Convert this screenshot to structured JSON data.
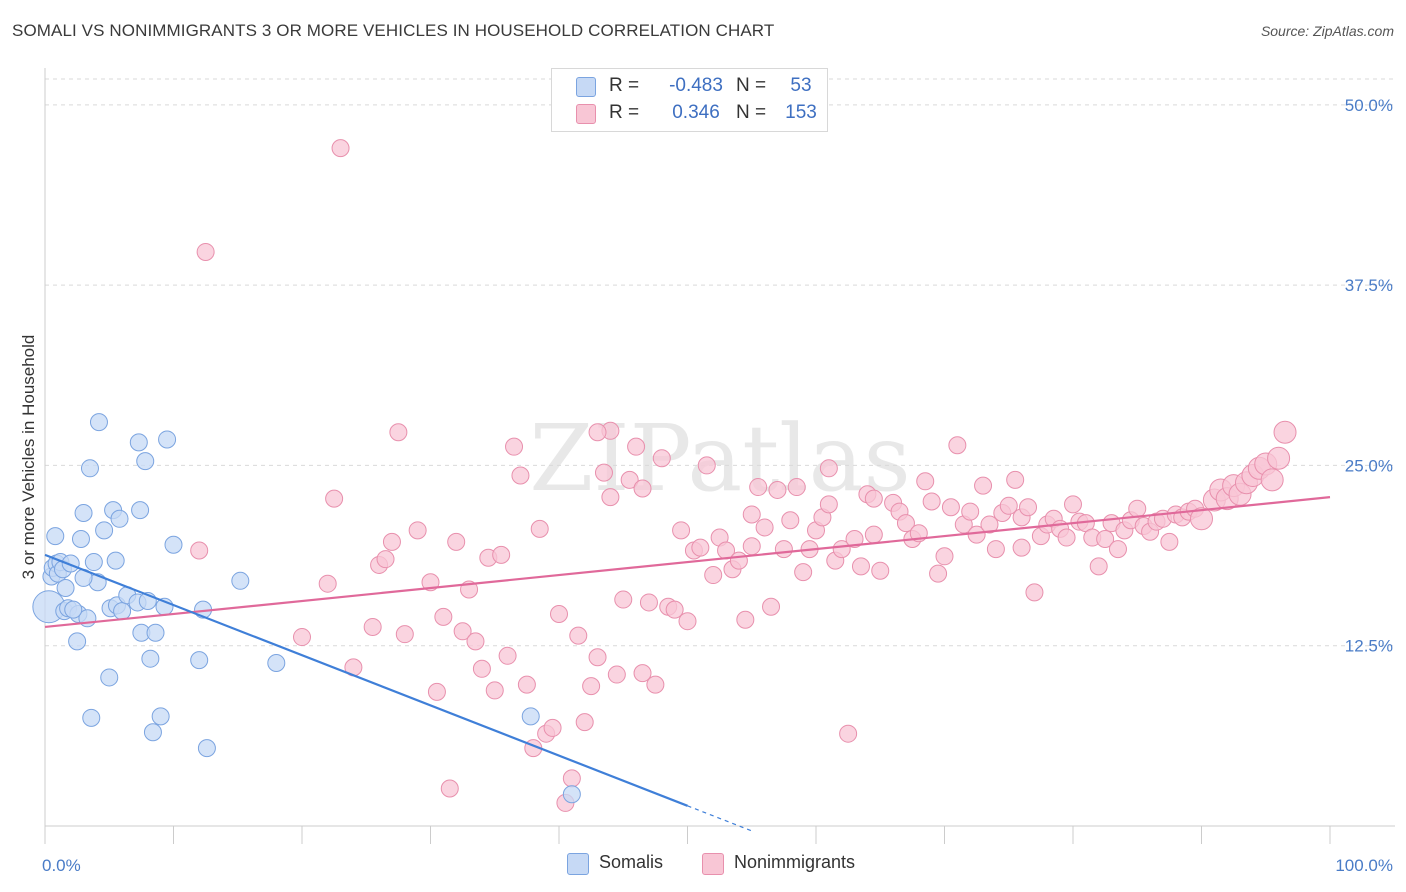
{
  "title": "SOMALI VS NONIMMIGRANTS 3 OR MORE VEHICLES IN HOUSEHOLD CORRELATION CHART",
  "source": "Source: ZipAtlas.com",
  "watermark": "ZIPatlas",
  "colors": {
    "somalis_fill": "#c6d9f5",
    "somalis_stroke": "#7ba4e0",
    "somalis_line": "#3f7fd8",
    "nonimm_fill": "#f8c6d5",
    "nonimm_stroke": "#e890ad",
    "nonimm_line": "#e0699a",
    "tick_label": "#4a7cc7",
    "grid": "#d9d9d9"
  },
  "legend": {
    "rows": [
      {
        "swatch": "somalis",
        "r_label": "R =",
        "r_value": "-0.483",
        "n_label": "N =",
        "n_value": "53"
      },
      {
        "swatch": "nonimm",
        "r_label": "R =",
        "r_value": "0.346",
        "n_label": "N =",
        "n_value": "153"
      }
    ]
  },
  "bottom_legend": {
    "somalis": "Somalis",
    "nonimm": "Nonimmigrants"
  },
  "chart_data": {
    "type": "scatter",
    "title": "SOMALI VS NONIMMIGRANTS 3 OR MORE VEHICLES IN HOUSEHOLD CORRELATION CHART",
    "xlabel": "",
    "ylabel": "3 or more Vehicles in Household",
    "xlim": [
      0,
      100
    ],
    "ylim": [
      0,
      52
    ],
    "x_tick_labels": [
      "0.0%",
      "100.0%"
    ],
    "y_ticks": [
      12.5,
      25.0,
      37.5,
      50.0
    ],
    "y_tick_labels": [
      "12.5%",
      "25.0%",
      "37.5%",
      "50.0%"
    ],
    "grid": true,
    "series": [
      {
        "name": "Somalis",
        "r": -0.483,
        "n": 53,
        "trend": {
          "x0": 0,
          "y0": 18.8,
          "x1": 50,
          "y1": 1.4,
          "dash_to_x": 55
        },
        "points": [
          [
            0.3,
            15.2
          ],
          [
            0.5,
            17.3
          ],
          [
            0.6,
            17.9
          ],
          [
            0.8,
            20.1
          ],
          [
            0.9,
            18.2
          ],
          [
            1.0,
            17.5
          ],
          [
            1.2,
            18.3
          ],
          [
            1.4,
            17.8
          ],
          [
            1.5,
            14.9
          ],
          [
            1.6,
            16.5
          ],
          [
            1.8,
            15.1
          ],
          [
            2.0,
            18.2
          ],
          [
            2.5,
            12.8
          ],
          [
            2.6,
            14.7
          ],
          [
            2.8,
            19.9
          ],
          [
            3.0,
            21.7
          ],
          [
            3.3,
            14.4
          ],
          [
            3.5,
            24.8
          ],
          [
            3.6,
            7.5
          ],
          [
            3.8,
            18.3
          ],
          [
            4.1,
            16.9
          ],
          [
            4.2,
            28.0
          ],
          [
            4.6,
            20.5
          ],
          [
            5.0,
            10.3
          ],
          [
            5.1,
            15.1
          ],
          [
            5.3,
            21.9
          ],
          [
            5.5,
            18.4
          ],
          [
            5.6,
            15.3
          ],
          [
            5.8,
            21.3
          ],
          [
            6.0,
            14.9
          ],
          [
            6.4,
            16.0
          ],
          [
            7.2,
            15.5
          ],
          [
            7.4,
            21.9
          ],
          [
            7.3,
            26.6
          ],
          [
            7.5,
            13.4
          ],
          [
            7.8,
            25.3
          ],
          [
            8.0,
            15.6
          ],
          [
            8.2,
            11.6
          ],
          [
            8.4,
            6.5
          ],
          [
            8.6,
            13.4
          ],
          [
            9.0,
            7.6
          ],
          [
            9.3,
            15.2
          ],
          [
            9.5,
            26.8
          ],
          [
            10.0,
            19.5
          ],
          [
            12.0,
            11.5
          ],
          [
            12.3,
            15.0
          ],
          [
            12.6,
            5.4
          ],
          [
            15.2,
            17.0
          ],
          [
            18.0,
            11.3
          ],
          [
            37.8,
            7.6
          ],
          [
            41.0,
            2.2
          ],
          [
            3.0,
            17.2
          ],
          [
            2.2,
            15.0
          ]
        ]
      },
      {
        "name": "Nonimmigrants",
        "r": 0.346,
        "n": 153,
        "trend": {
          "x0": 0,
          "y0": 13.8,
          "x1": 100,
          "y1": 22.8
        },
        "points": [
          [
            12.0,
            19.1
          ],
          [
            12.5,
            39.8
          ],
          [
            23.0,
            47.0
          ],
          [
            22.0,
            16.8
          ],
          [
            24.0,
            11.0
          ],
          [
            25.5,
            13.8
          ],
          [
            26.0,
            18.1
          ],
          [
            26.5,
            18.5
          ],
          [
            27.0,
            19.7
          ],
          [
            27.5,
            27.3
          ],
          [
            28.0,
            13.3
          ],
          [
            29.0,
            20.5
          ],
          [
            30.0,
            16.9
          ],
          [
            30.5,
            9.3
          ],
          [
            31.0,
            14.5
          ],
          [
            31.5,
            2.6
          ],
          [
            32.0,
            19.7
          ],
          [
            32.5,
            13.5
          ],
          [
            33.0,
            16.4
          ],
          [
            33.5,
            12.8
          ],
          [
            34.0,
            10.9
          ],
          [
            34.5,
            18.6
          ],
          [
            35.0,
            9.4
          ],
          [
            35.5,
            18.8
          ],
          [
            36.0,
            11.8
          ],
          [
            36.5,
            26.3
          ],
          [
            37.0,
            24.3
          ],
          [
            37.5,
            9.8
          ],
          [
            38.0,
            5.4
          ],
          [
            38.5,
            20.6
          ],
          [
            39.0,
            6.4
          ],
          [
            39.5,
            6.8
          ],
          [
            40.0,
            14.7
          ],
          [
            40.5,
            1.6
          ],
          [
            41.0,
            3.3
          ],
          [
            41.5,
            13.2
          ],
          [
            42.0,
            7.2
          ],
          [
            42.5,
            9.7
          ],
          [
            43.0,
            11.7
          ],
          [
            43.5,
            24.5
          ],
          [
            44.0,
            27.4
          ],
          [
            44.5,
            10.5
          ],
          [
            45.0,
            15.7
          ],
          [
            45.5,
            24.0
          ],
          [
            46.0,
            26.3
          ],
          [
            46.5,
            10.6
          ],
          [
            47.0,
            15.5
          ],
          [
            47.5,
            9.8
          ],
          [
            48.0,
            25.5
          ],
          [
            48.5,
            15.2
          ],
          [
            49.0,
            15.0
          ],
          [
            49.5,
            20.5
          ],
          [
            50.0,
            14.2
          ],
          [
            50.5,
            19.1
          ],
          [
            51.0,
            19.3
          ],
          [
            51.5,
            25.0
          ],
          [
            52.0,
            17.4
          ],
          [
            52.5,
            20.0
          ],
          [
            53.0,
            19.1
          ],
          [
            53.5,
            17.8
          ],
          [
            54.0,
            18.4
          ],
          [
            54.5,
            14.3
          ],
          [
            55.0,
            21.6
          ],
          [
            55.5,
            23.5
          ],
          [
            56.0,
            20.7
          ],
          [
            56.5,
            15.2
          ],
          [
            57.0,
            23.3
          ],
          [
            57.5,
            19.2
          ],
          [
            58.0,
            21.2
          ],
          [
            58.5,
            23.5
          ],
          [
            59.0,
            17.6
          ],
          [
            59.5,
            19.2
          ],
          [
            60.0,
            20.5
          ],
          [
            60.5,
            21.4
          ],
          [
            61.0,
            22.3
          ],
          [
            61.5,
            18.4
          ],
          [
            62.0,
            19.2
          ],
          [
            62.5,
            6.4
          ],
          [
            63.0,
            19.9
          ],
          [
            63.5,
            18.0
          ],
          [
            64.0,
            23.0
          ],
          [
            64.5,
            20.2
          ],
          [
            65.0,
            17.7
          ],
          [
            66.0,
            22.4
          ],
          [
            66.5,
            21.8
          ],
          [
            67.0,
            21.0
          ],
          [
            67.5,
            19.9
          ],
          [
            68.0,
            20.3
          ],
          [
            68.5,
            23.9
          ],
          [
            69.0,
            22.5
          ],
          [
            69.5,
            17.5
          ],
          [
            70.0,
            18.7
          ],
          [
            70.5,
            22.1
          ],
          [
            71.0,
            26.4
          ],
          [
            71.5,
            20.9
          ],
          [
            72.0,
            21.8
          ],
          [
            72.5,
            20.2
          ],
          [
            73.0,
            23.6
          ],
          [
            73.5,
            20.9
          ],
          [
            74.0,
            19.2
          ],
          [
            74.5,
            21.7
          ],
          [
            75.0,
            22.2
          ],
          [
            75.5,
            24.0
          ],
          [
            76.0,
            21.4
          ],
          [
            76.5,
            22.1
          ],
          [
            77.0,
            16.2
          ],
          [
            77.5,
            20.1
          ],
          [
            78.0,
            20.9
          ],
          [
            78.5,
            21.3
          ],
          [
            79.0,
            20.6
          ],
          [
            79.5,
            20.0
          ],
          [
            80.0,
            22.3
          ],
          [
            80.5,
            21.1
          ],
          [
            81.0,
            21.0
          ],
          [
            81.5,
            20.0
          ],
          [
            82.0,
            18.0
          ],
          [
            82.5,
            19.9
          ],
          [
            83.0,
            21.0
          ],
          [
            83.5,
            19.2
          ],
          [
            84.0,
            20.5
          ],
          [
            84.5,
            21.2
          ],
          [
            85.0,
            22.0
          ],
          [
            85.5,
            20.8
          ],
          [
            86.0,
            20.4
          ],
          [
            86.5,
            21.1
          ],
          [
            87.0,
            21.3
          ],
          [
            87.5,
            19.7
          ],
          [
            88.0,
            21.6
          ],
          [
            88.5,
            21.4
          ],
          [
            89.0,
            21.8
          ],
          [
            89.5,
            22.0
          ],
          [
            90.0,
            21.3
          ],
          [
            91.0,
            22.6
          ],
          [
            91.5,
            23.3
          ],
          [
            92.0,
            22.7
          ],
          [
            92.5,
            23.6
          ],
          [
            93.0,
            23.0
          ],
          [
            93.5,
            23.8
          ],
          [
            94.0,
            24.3
          ],
          [
            94.5,
            24.8
          ],
          [
            95.0,
            25.1
          ],
          [
            95.5,
            24.0
          ],
          [
            96.0,
            25.5
          ],
          [
            96.5,
            27.3
          ],
          [
            20.0,
            13.1
          ],
          [
            22.5,
            22.7
          ],
          [
            43.0,
            27.3
          ],
          [
            44.0,
            22.8
          ],
          [
            46.5,
            23.4
          ],
          [
            55.0,
            19.4
          ],
          [
            61.0,
            24.8
          ],
          [
            64.5,
            22.7
          ],
          [
            76.0,
            19.3
          ]
        ]
      }
    ]
  }
}
